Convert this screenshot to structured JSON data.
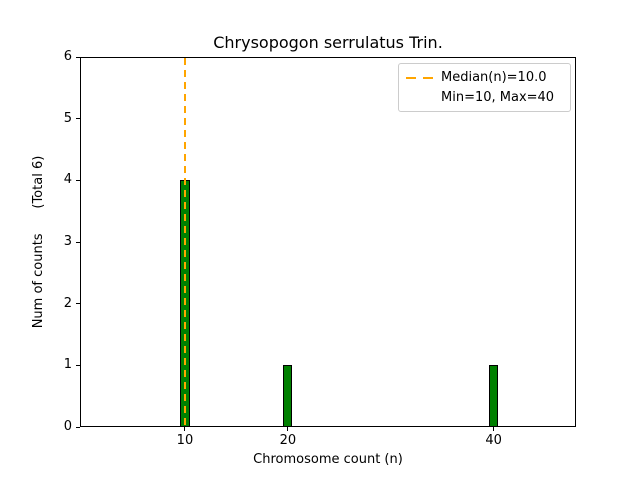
{
  "chart_data": {
    "type": "bar",
    "title": "Chrysopogon serrulatus Trin.",
    "xlabel": "Chromosome count (n)",
    "ylabel": "Num of counts      (Total 6)",
    "x": [
      10,
      20,
      40
    ],
    "values": [
      4,
      1,
      1
    ],
    "total": 6,
    "bar_width_units": 0.9,
    "bar_color": "#008000",
    "bar_edge_color": "#000000",
    "median_line": {
      "x": 10.0,
      "color": "#FFA500",
      "style": "dashed",
      "label": "Median(n)=10.0"
    },
    "stats": {
      "median": 10.0,
      "min": 10,
      "max": 40
    },
    "legend": {
      "position": "upper right",
      "entries": [
        {
          "marker": "orange-dashed-line",
          "label": "Median(n)=10.0"
        },
        {
          "marker": "none",
          "label": "Min=10, Max=40"
        }
      ]
    },
    "x_ticks": [
      10,
      20,
      40
    ],
    "y_ticks": [
      0,
      1,
      2,
      3,
      4,
      5,
      6
    ],
    "xlim": [
      -0.2,
      48.0
    ],
    "ylim": [
      0,
      6
    ],
    "grid": false,
    "background": "#ffffff"
  }
}
